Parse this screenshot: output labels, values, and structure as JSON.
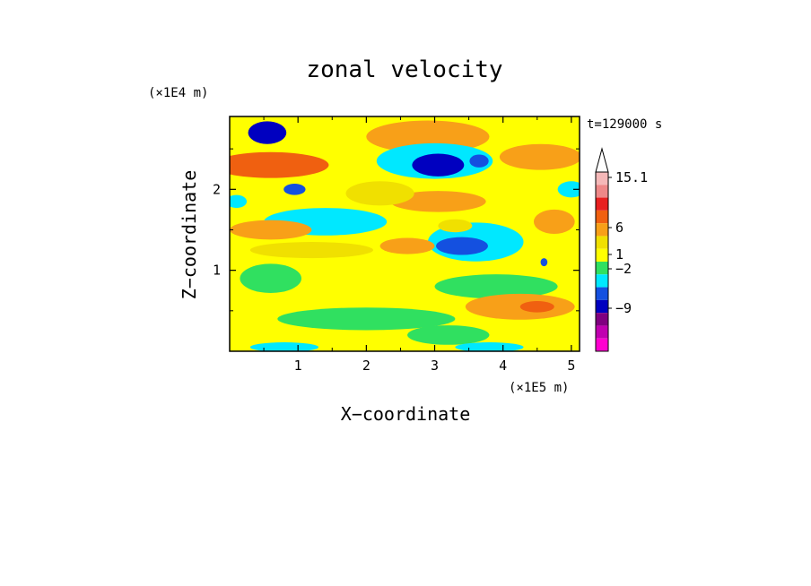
{
  "chart_data": {
    "type": "heatmap",
    "title": "zonal velocity",
    "xlabel": "X−coordinate",
    "ylabel": "Z−coordinate",
    "x_unit": "(×1E5 m)",
    "y_unit": "(×1E4 m)",
    "time_label": "t=129000 s",
    "xlim": [
      0,
      5.12
    ],
    "ylim": [
      0,
      2.9
    ],
    "x_ticks": [
      1,
      2,
      3,
      4,
      5
    ],
    "y_ticks": [
      1,
      2
    ],
    "x_tick_labels": [
      "1",
      "2",
      "3",
      "4",
      "5"
    ],
    "y_tick_labels": [
      "1",
      "2"
    ],
    "grid": false,
    "colorbar": {
      "labels": [
        {
          "text": "15.1",
          "value": 15.1
        },
        {
          "text": "6",
          "value": 6
        },
        {
          "text": "1",
          "value": 1
        },
        {
          "text": "−2",
          "value": -2
        },
        {
          "text": "−9",
          "value": -9
        }
      ],
      "colors_top_to_bottom": [
        "#f5b8b8",
        "#ee8888",
        "#e82020",
        "#f06010",
        "#f8a018",
        "#f0e000",
        "#ffff00",
        "#30e060",
        "#00e8ff",
        "#1450e0",
        "#0000c0",
        "#800080",
        "#c000b0",
        "#ff00d0"
      ]
    },
    "levels": [
      {
        "min": -16,
        "max": -9,
        "color": "#ff00d0"
      },
      {
        "min": -9,
        "max": -6,
        "color": "#800080"
      },
      {
        "min": -6,
        "max": -4,
        "color": "#0000c0"
      },
      {
        "min": -4,
        "max": -2,
        "color": "#1450e0"
      },
      {
        "min": -2,
        "max": -1,
        "color": "#00e8ff"
      },
      {
        "min": -1,
        "max": 0,
        "color": "#30e060"
      },
      {
        "min": 0,
        "max": 1,
        "color": "#ffff00"
      },
      {
        "min": 1,
        "max": 2,
        "color": "#f0e000"
      },
      {
        "min": 2,
        "max": 3,
        "color": "#f8a018"
      },
      {
        "min": 3,
        "max": 6,
        "color": "#f06010"
      },
      {
        "min": 6,
        "max": 9,
        "color": "#e82020"
      },
      {
        "min": 9,
        "max": 12,
        "color": "#ee8888"
      },
      {
        "min": 12,
        "max": 16,
        "color": "#f5b8b8"
      }
    ],
    "features": [
      {
        "x": 0.55,
        "y": 2.7,
        "rx": 0.28,
        "ry": 0.14,
        "value": -6
      },
      {
        "x": 0.6,
        "y": 2.3,
        "rx": 0.85,
        "ry": 0.16,
        "value": 4
      },
      {
        "x": 2.9,
        "y": 2.65,
        "rx": 0.9,
        "ry": 0.2,
        "value": 2.5
      },
      {
        "x": 3.0,
        "y": 2.35,
        "rx": 0.85,
        "ry": 0.22,
        "value": -1.5
      },
      {
        "x": 3.05,
        "y": 2.3,
        "rx": 0.38,
        "ry": 0.14,
        "value": -5
      },
      {
        "x": 3.65,
        "y": 2.35,
        "rx": 0.14,
        "ry": 0.08,
        "value": -4
      },
      {
        "x": 4.55,
        "y": 2.4,
        "rx": 0.6,
        "ry": 0.16,
        "value": 2
      },
      {
        "x": 0.95,
        "y": 2.0,
        "rx": 0.16,
        "ry": 0.07,
        "value": -3
      },
      {
        "x": 1.4,
        "y": 1.6,
        "rx": 0.9,
        "ry": 0.17,
        "value": -1.5
      },
      {
        "x": 3.05,
        "y": 1.85,
        "rx": 0.7,
        "ry": 0.13,
        "value": 2.5
      },
      {
        "x": 2.2,
        "y": 1.95,
        "rx": 0.5,
        "ry": 0.15,
        "value": 1.5
      },
      {
        "x": 3.6,
        "y": 1.35,
        "rx": 0.7,
        "ry": 0.24,
        "value": -1.5
      },
      {
        "x": 3.4,
        "y": 1.3,
        "rx": 0.38,
        "ry": 0.11,
        "value": -4
      },
      {
        "x": 4.6,
        "y": 1.1,
        "rx": 0.05,
        "ry": 0.05,
        "value": -4
      },
      {
        "x": 4.75,
        "y": 1.6,
        "rx": 0.3,
        "ry": 0.15,
        "value": 2.5
      },
      {
        "x": 0.6,
        "y": 1.5,
        "rx": 0.6,
        "ry": 0.12,
        "value": 2
      },
      {
        "x": 2.6,
        "y": 1.3,
        "rx": 0.4,
        "ry": 0.1,
        "value": 2
      },
      {
        "x": 1.2,
        "y": 1.25,
        "rx": 0.9,
        "ry": 0.1,
        "value": 1.5
      },
      {
        "x": 3.3,
        "y": 1.55,
        "rx": 0.25,
        "ry": 0.08,
        "value": 1.5
      },
      {
        "x": 0.6,
        "y": 0.9,
        "rx": 0.45,
        "ry": 0.18,
        "value": -0.5
      },
      {
        "x": 3.9,
        "y": 0.8,
        "rx": 0.9,
        "ry": 0.15,
        "value": -0.5
      },
      {
        "x": 4.25,
        "y": 0.55,
        "rx": 0.8,
        "ry": 0.16,
        "value": 2.5
      },
      {
        "x": 4.5,
        "y": 0.55,
        "rx": 0.25,
        "ry": 0.07,
        "value": 4
      },
      {
        "x": 2.0,
        "y": 0.4,
        "rx": 1.3,
        "ry": 0.14,
        "value": -0.5
      },
      {
        "x": 3.2,
        "y": 0.2,
        "rx": 0.6,
        "ry": 0.12,
        "value": -0.5
      },
      {
        "x": 0.8,
        "y": 0.05,
        "rx": 0.5,
        "ry": 0.06,
        "value": -1.5
      },
      {
        "x": 3.8,
        "y": 0.05,
        "rx": 0.5,
        "ry": 0.06,
        "value": -1.5
      },
      {
        "x": 5.0,
        "y": 2.0,
        "rx": 0.2,
        "ry": 0.1,
        "value": -1.5
      },
      {
        "x": 0.1,
        "y": 1.85,
        "rx": 0.15,
        "ry": 0.08,
        "value": -1.5
      }
    ]
  }
}
